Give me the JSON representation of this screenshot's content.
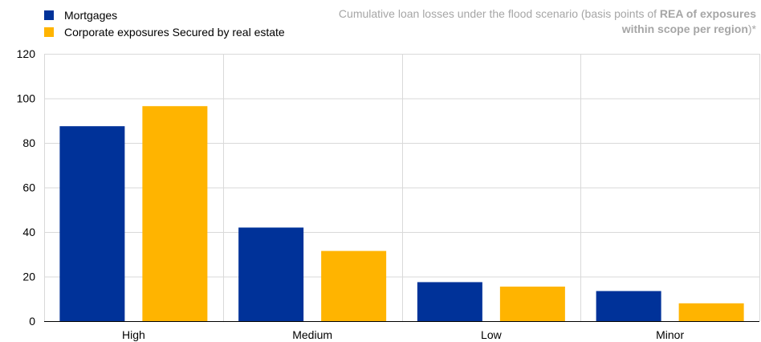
{
  "chart_data": {
    "type": "bar",
    "title_parts": {
      "pre": "Cumulative loan losses under the flood scenario (basis points of ",
      "bold1": "REA of exposures within scope per region",
      "post": ")*"
    },
    "categories": [
      "High",
      "Medium",
      "Low",
      "Minor"
    ],
    "series": [
      {
        "name": "Mortgages",
        "color": "#003299",
        "values": [
          87.5,
          42,
          17.5,
          13.5
        ]
      },
      {
        "name": "Corporate exposures Secured by real estate",
        "color": "#ffb400",
        "values": [
          96.5,
          31.5,
          15.5,
          8
        ]
      }
    ],
    "ylim": [
      0,
      120
    ],
    "yticks": [
      0,
      20,
      40,
      60,
      80,
      100,
      120
    ],
    "grid": true,
    "legend_position": "top-left"
  }
}
